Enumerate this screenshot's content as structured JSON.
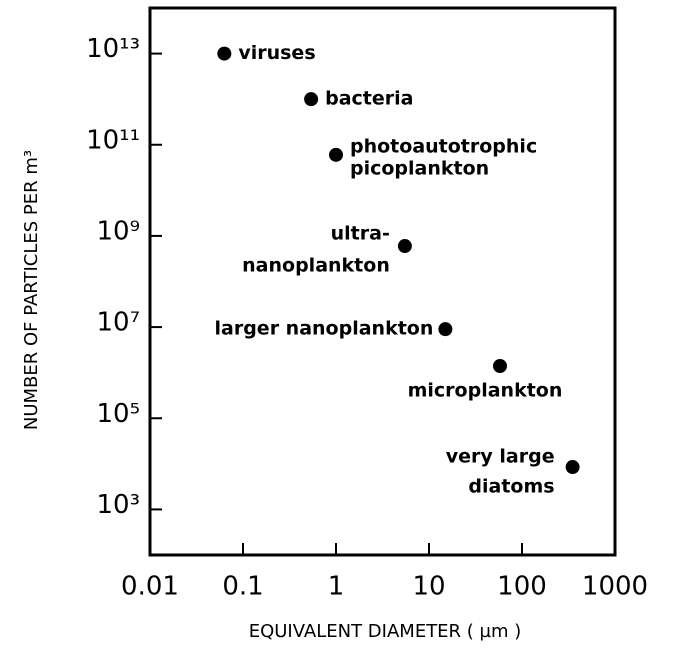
{
  "chart_data": {
    "type": "scatter",
    "x_label": "EQUIVALENT DIAMETER  ( µm )",
    "y_label": "NUMBER OF PARTICLES PER m³",
    "x_log": true,
    "y_log": true,
    "color": "#000000",
    "xlim": [
      0.01,
      1000
    ],
    "xticks": [
      0.01,
      0.1,
      1,
      10,
      100,
      1000
    ],
    "ylim": [
      100,
      100000000000000
    ],
    "yticks": [
      {
        "value": 1000,
        "label": "10³"
      },
      {
        "value": 100000,
        "label": "10⁵"
      },
      {
        "value": 10000000,
        "label": "10⁷"
      },
      {
        "value": 1000000000,
        "label": "10⁹"
      },
      {
        "value": 100000000000,
        "label": "10¹¹"
      },
      {
        "value": 10000000000000,
        "label": "10¹³"
      }
    ],
    "x": [
      0.063,
      0.54,
      1,
      5.5,
      15,
      58,
      350
    ],
    "values": [
      10000000000000,
      1000000000000,
      60000000000,
      600000000,
      9000000,
      1400000,
      8500
    ],
    "point_labels": [
      [
        "viruses"
      ],
      [
        "bacteria"
      ],
      [
        "photoautotrophic",
        "picoplankton"
      ],
      [
        "ultra-",
        "nanoplankton"
      ],
      [
        "larger nanoplankton"
      ],
      [
        "microplankton"
      ],
      [
        "very large",
        "diatoms"
      ]
    ]
  }
}
